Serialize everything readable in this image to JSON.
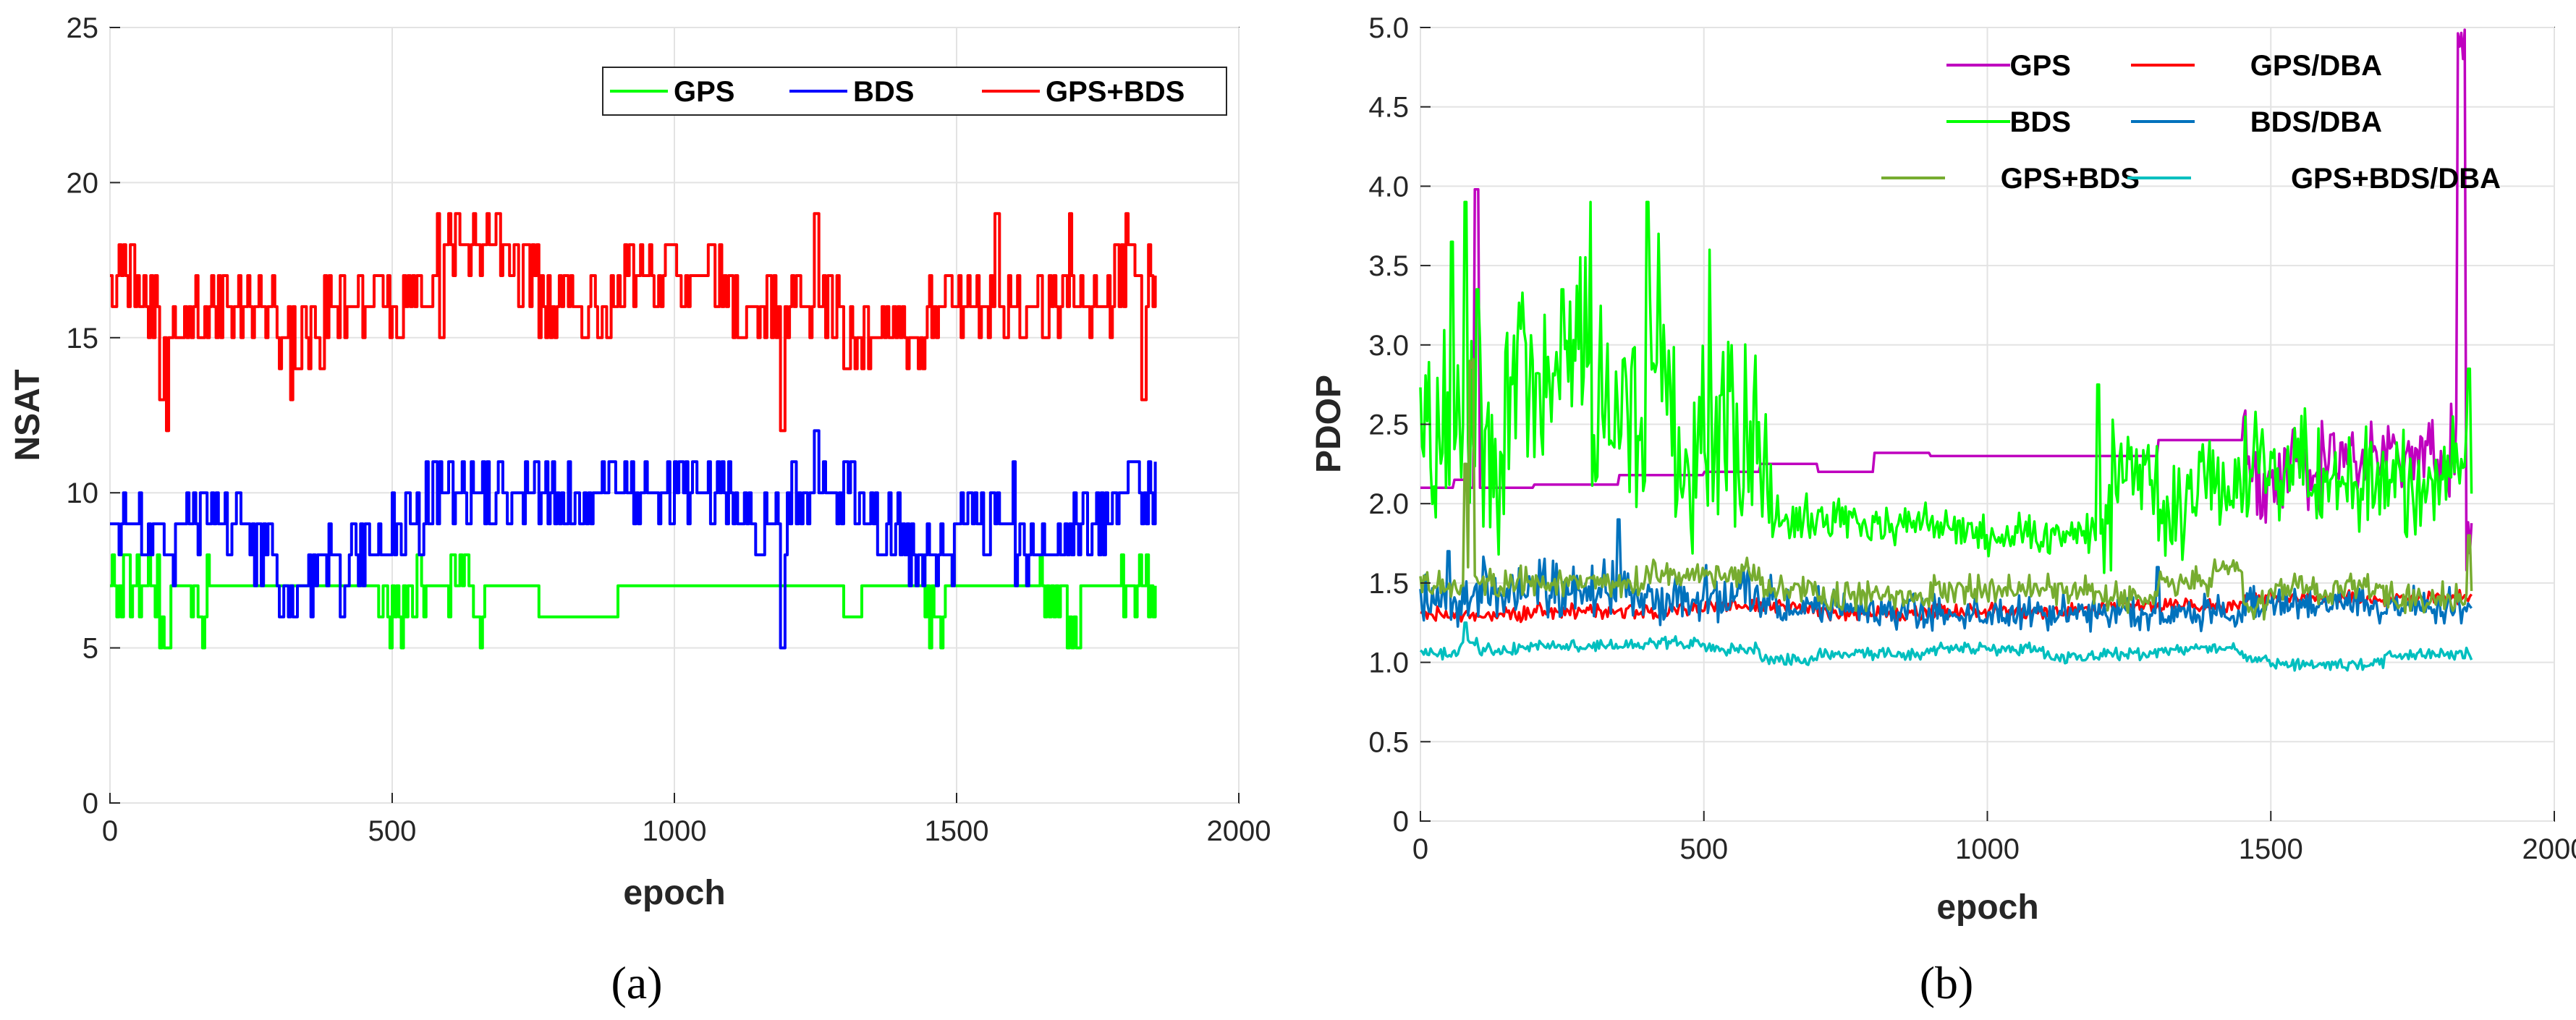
{
  "chart_data": [
    {
      "panel": "a",
      "type": "line",
      "caption": "(a)",
      "xlabel": "epoch",
      "ylabel": "NSAT",
      "xlim": [
        0,
        2000
      ],
      "ylim": [
        0,
        25
      ],
      "xticks": [
        "0",
        "500",
        "1000",
        "1500",
        "2000"
      ],
      "yticks": [
        "0",
        "5",
        "10",
        "15",
        "20",
        "25"
      ],
      "grid": true,
      "legend_position": "top-right",
      "legend_columns": 3,
      "series": [
        {
          "name": "GPS",
          "color": "#00ff00",
          "levels": [
            [
              0,
              7
            ],
            [
              85,
              6
            ],
            [
              95,
              5
            ],
            [
              105,
              7
            ],
            [
              150,
              6
            ],
            [
              165,
              7
            ],
            [
              490,
              6
            ],
            [
              525,
              7
            ],
            [
              640,
              6
            ],
            [
              660,
              7
            ],
            [
              760,
              6
            ],
            [
              900,
              7
            ],
            [
              1300,
              6
            ],
            [
              1330,
              7
            ],
            [
              1450,
              6
            ],
            [
              1480,
              7
            ],
            [
              1650,
              6
            ],
            [
              1720,
              7
            ],
            [
              1840,
              6
            ],
            [
              1855,
              6
            ]
          ],
          "noise": [
            [
              0,
              95,
              1
            ],
            [
              140,
              175,
              1
            ],
            [
              470,
              560,
              1
            ],
            [
              600,
              660,
              1
            ],
            [
              1440,
              1500,
              1
            ],
            [
              1640,
              1730,
              1
            ],
            [
              1790,
              1855,
              1
            ]
          ]
        },
        {
          "name": "BDS",
          "color": "#0000ff",
          "levels": [
            [
              0,
              9
            ],
            [
              60,
              8
            ],
            [
              120,
              9
            ],
            [
              230,
              8
            ],
            [
              300,
              7
            ],
            [
              370,
              8
            ],
            [
              500,
              9
            ],
            [
              560,
              10
            ],
            [
              1000,
              10
            ],
            [
              1100,
              9
            ],
            [
              1200,
              10
            ],
            [
              1320,
              9
            ],
            [
              1400,
              8
            ],
            [
              1500,
              9
            ],
            [
              1600,
              8
            ],
            [
              1700,
              9
            ],
            [
              1800,
              10
            ],
            [
              1855,
              9
            ]
          ],
          "noise": [
            [
              0,
              500,
              1
            ],
            [
              500,
              1400,
              1
            ],
            [
              1400,
              1855,
              1
            ]
          ],
          "spikes": [
            [
              325,
              6
            ],
            [
              410,
              6
            ],
            [
              560,
              11
            ],
            [
              640,
              11
            ],
            [
              1035,
              11
            ],
            [
              1190,
              5
            ],
            [
              1250,
              12
            ],
            [
              1300,
              11
            ],
            [
              1600,
              11
            ],
            [
              1820,
              11
            ]
          ]
        },
        {
          "name": "GPS+BDS",
          "color": "#ff0000",
          "levels": [
            [
              0,
              17
            ],
            [
              50,
              16
            ],
            [
              90,
              15
            ],
            [
              105,
              15
            ],
            [
              150,
              16
            ],
            [
              300,
              15
            ],
            [
              380,
              16
            ],
            [
              520,
              16
            ],
            [
              590,
              18
            ],
            [
              700,
              17
            ],
            [
              760,
              16
            ],
            [
              900,
              17
            ],
            [
              1100,
              16
            ],
            [
              1300,
              15
            ],
            [
              1450,
              16
            ],
            [
              1600,
              16
            ],
            [
              1700,
              16
            ],
            [
              1780,
              17
            ],
            [
              1855,
              15
            ]
          ],
          "noise": [
            [
              0,
              1855,
              1
            ]
          ],
          "spikes": [
            [
              90,
              13
            ],
            [
              100,
              12
            ],
            [
              320,
              13
            ],
            [
              580,
              19
            ],
            [
              600,
              19
            ],
            [
              1190,
              12
            ],
            [
              1250,
              19
            ],
            [
              1570,
              19
            ],
            [
              1700,
              19
            ],
            [
              1800,
              19
            ],
            [
              1830,
              13
            ]
          ]
        }
      ]
    },
    {
      "panel": "b",
      "type": "line",
      "caption": "(b)",
      "xlabel": "epoch",
      "ylabel": "PDOP",
      "xlim": [
        0,
        2000
      ],
      "ylim": [
        0,
        5
      ],
      "xticks": [
        "0",
        "500",
        "1000",
        "1500",
        "2000"
      ],
      "yticks": [
        "0",
        "0.5",
        "1.0",
        "1.5",
        "2.0",
        "2.5",
        "3.0",
        "3.5",
        "4.0",
        "4.5",
        "5.0"
      ],
      "grid": true,
      "legend_position": "top-right",
      "legend_columns": 2,
      "series": [
        {
          "name": "GPS",
          "color": "#bf00bf",
          "levels": [
            [
              0,
              2.1
            ],
            [
              60,
              2.15
            ],
            [
              80,
              2.1
            ],
            [
              95,
              3.98
            ],
            [
              105,
              2.1
            ],
            [
              170,
              2.1
            ],
            [
              200,
              2.12
            ],
            [
              350,
              2.18
            ],
            [
              500,
              2.2
            ],
            [
              600,
              2.25
            ],
            [
              700,
              2.2
            ],
            [
              800,
              2.32
            ],
            [
              900,
              2.3
            ],
            [
              1000,
              2.3
            ],
            [
              1200,
              2.3
            ],
            [
              1300,
              2.4
            ],
            [
              1450,
              2.45
            ],
            [
              1460,
              2.1
            ],
            [
              1500,
              2.2
            ],
            [
              1600,
              2.3
            ],
            [
              1700,
              2.3
            ],
            [
              1800,
              2.3
            ],
            [
              1830,
              5.0
            ],
            [
              1845,
              1.8
            ],
            [
              1855,
              1.8
            ]
          ],
          "noise": [
            [
              1450,
              1855,
              0.3
            ]
          ]
        },
        {
          "name": "GPS/DBA",
          "color": "#ff0000",
          "levels": [
            [
              0,
              1.3
            ],
            [
              200,
              1.32
            ],
            [
              500,
              1.35
            ],
            [
              700,
              1.3
            ],
            [
              900,
              1.32
            ],
            [
              1200,
              1.35
            ],
            [
              1450,
              1.4
            ],
            [
              1600,
              1.4
            ],
            [
              1855,
              1.4
            ]
          ],
          "noise": [
            [
              0,
              1855,
              0.05
            ]
          ]
        },
        {
          "name": "BDS",
          "color": "#00ff00",
          "levels": [
            [
              0,
              2.3
            ],
            [
              40,
              2.4
            ],
            [
              90,
              2.3
            ],
            [
              150,
              2.8
            ],
            [
              300,
              2.6
            ],
            [
              450,
              2.3
            ],
            [
              600,
              2.2
            ],
            [
              620,
              1.9
            ],
            [
              800,
              1.85
            ],
            [
              1000,
              1.8
            ],
            [
              1200,
              1.8
            ],
            [
              1220,
              2.2
            ],
            [
              1300,
              1.9
            ],
            [
              1350,
              2.1
            ],
            [
              1450,
              2.2
            ],
            [
              1600,
              2.1
            ],
            [
              1800,
              2.2
            ],
            [
              1855,
              2.3
            ]
          ],
          "noise": [
            [
              0,
              620,
              0.7
            ],
            [
              620,
              1200,
              0.15
            ],
            [
              1200,
              1855,
              0.35
            ]
          ],
          "spikes": [
            [
              55,
              3.65
            ],
            [
              80,
              3.9
            ],
            [
              100,
              3.35
            ],
            [
              250,
              3.35
            ],
            [
              300,
              3.9
            ],
            [
              400,
              3.9
            ],
            [
              420,
              3.7
            ],
            [
              510,
              3.6
            ],
            [
              1195,
              2.75
            ],
            [
              1560,
              2.6
            ],
            [
              1850,
              2.85
            ]
          ]
        },
        {
          "name": "BDS/DBA",
          "color": "#0072bd",
          "levels": [
            [
              0,
              1.4
            ],
            [
              100,
              1.45
            ],
            [
              400,
              1.4
            ],
            [
              600,
              1.35
            ],
            [
              800,
              1.3
            ],
            [
              1200,
              1.3
            ],
            [
              1450,
              1.35
            ],
            [
              1855,
              1.35
            ]
          ],
          "noise": [
            [
              0,
              620,
              0.2
            ],
            [
              620,
              1855,
              0.12
            ]
          ],
          "spikes": [
            [
              50,
              1.7
            ],
            [
              350,
              1.9
            ],
            [
              1300,
              1.6
            ]
          ]
        },
        {
          "name": "GPS+BDS",
          "color": "#77ac30",
          "levels": [
            [
              0,
              1.48
            ],
            [
              70,
              1.5
            ],
            [
              85,
              2.9
            ],
            [
              95,
              1.5
            ],
            [
              200,
              1.5
            ],
            [
              400,
              1.55
            ],
            [
              600,
              1.45
            ],
            [
              700,
              1.4
            ],
            [
              900,
              1.45
            ],
            [
              1200,
              1.4
            ],
            [
              1300,
              1.5
            ],
            [
              1400,
              1.6
            ],
            [
              1450,
              1.35
            ],
            [
              1500,
              1.45
            ],
            [
              1700,
              1.4
            ],
            [
              1855,
              1.5
            ]
          ],
          "noise": [
            [
              0,
              1855,
              0.1
            ]
          ],
          "spikes": [
            [
              80,
              2.25
            ],
            [
              1850,
              1.8
            ]
          ]
        },
        {
          "name": "GPS+BDS/DBA",
          "color": "#00bfbf",
          "levels": [
            [
              0,
              1.05
            ],
            [
              70,
              1.12
            ],
            [
              100,
              1.08
            ],
            [
              200,
              1.1
            ],
            [
              400,
              1.12
            ],
            [
              500,
              1.08
            ],
            [
              600,
              1.02
            ],
            [
              700,
              1.05
            ],
            [
              900,
              1.08
            ],
            [
              1100,
              1.03
            ],
            [
              1200,
              1.05
            ],
            [
              1300,
              1.08
            ],
            [
              1450,
              1.02
            ],
            [
              1500,
              0.98
            ],
            [
              1700,
              1.05
            ],
            [
              1855,
              1.15
            ]
          ],
          "noise": [
            [
              0,
              1855,
              0.04
            ]
          ],
          "spikes": [
            [
              80,
              1.25
            ]
          ]
        }
      ]
    }
  ]
}
